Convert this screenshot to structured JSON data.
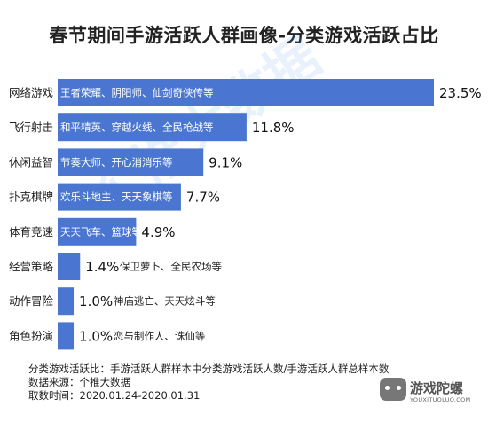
{
  "chart_data": {
    "type": "bar",
    "orientation": "horizontal",
    "title": "春节期间手游活跃人群画像-分类游戏活跃占比",
    "categories": [
      "网络游戏",
      "飞行射击",
      "休闲益智",
      "扑克棋牌",
      "体育竞速",
      "经营策略",
      "动作冒险",
      "角色扮演"
    ],
    "values": [
      23.5,
      11.8,
      9.1,
      7.7,
      4.9,
      1.4,
      1.0,
      1.0
    ],
    "value_labels": [
      "23.5%",
      "11.8%",
      "9.1%",
      "7.7%",
      "4.9%",
      "1.4%",
      "1.0%",
      "1.0%"
    ],
    "annotations": [
      "王者荣耀、阴阳师、仙剑奇侠传等",
      "和平精英、穿越火线、全民枪战等",
      "节奏大师、开心消消乐等",
      "欢乐斗地主、天天象棋等",
      "天天飞车、篮球等",
      "保卫萝卜、全民农场等",
      "神庙逃亡、天天炫斗等",
      "恋与制作人、诛仙等"
    ],
    "annotation_inside": [
      true,
      true,
      true,
      true,
      true,
      false,
      false,
      false
    ],
    "xlim": [
      0,
      23.5
    ],
    "grid": false,
    "bar_color": "#4a76d1"
  },
  "watermark": "个推大数据",
  "footer": {
    "line1": "分类游戏活跃比：手游活跃人群样本中分类游戏活跃人数/手游活跃人群总样本数",
    "line2": "数据来源：个推大数据",
    "line3": "取数时间：2020.01.24-2020.01.31"
  },
  "logo": {
    "name": "游戏陀螺",
    "url_text": "YOUXITUOLUO.COM",
    "icon": "gamepad-icon"
  }
}
